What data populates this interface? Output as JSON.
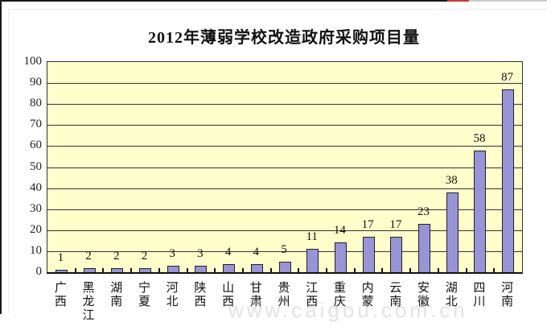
{
  "page": {
    "watermark": "www.caigou.com.cn"
  },
  "chart_data": {
    "type": "bar",
    "title": "2012年薄弱学校改造政府采购项目量",
    "categories": [
      "广西",
      "黑龙江",
      "湖南",
      "宁夏",
      "河北",
      "陕西",
      "山西",
      "甘肃",
      "贵州",
      "江西",
      "重庆",
      "内蒙",
      "云南",
      "安徽",
      "湖北",
      "四川",
      "河南"
    ],
    "values": [
      1,
      2,
      2,
      2,
      3,
      3,
      4,
      4,
      5,
      11,
      14,
      17,
      17,
      23,
      38,
      58,
      87
    ],
    "xlabel": "",
    "ylabel": "",
    "ylim": [
      0,
      100
    ],
    "yticks": [
      0,
      10,
      20,
      30,
      40,
      50,
      60,
      70,
      80,
      90,
      100
    ],
    "grid": true,
    "legend": "none",
    "colors": {
      "bar_fill": "#9795D6",
      "bar_border": "#222222",
      "plot_bg": "#FFFFCC",
      "grid_line": "#333333",
      "text": "#111111",
      "topbar_black": "#1a1a1a",
      "topbar_red": "#c9393b",
      "topbar_gray": "#cccccc"
    }
  }
}
